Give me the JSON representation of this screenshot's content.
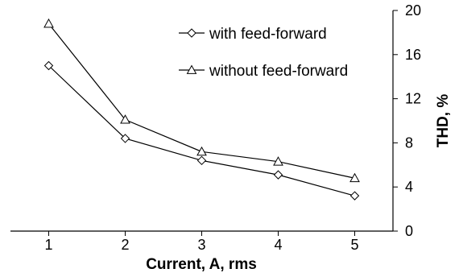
{
  "chart_data": {
    "type": "line",
    "title": "",
    "xlabel": "Current, A, rms",
    "ylabel": "THD, %",
    "x": [
      1,
      2,
      3,
      4,
      5
    ],
    "xticks": [
      "1",
      "2",
      "3",
      "4",
      "5"
    ],
    "xlim": [
      0.5,
      5.5
    ],
    "y_axis_side": "right",
    "ylim": [
      0,
      20
    ],
    "yticks": [
      "0",
      "4",
      "8",
      "12",
      "16",
      "20"
    ],
    "ytick_values": [
      0,
      4,
      8,
      12,
      16,
      20
    ],
    "grid": false,
    "legend_position": "top-right",
    "series": [
      {
        "name": "with feed-forward",
        "marker": "diamond",
        "color": "#000000",
        "values": [
          15.0,
          8.4,
          6.4,
          5.1,
          3.2
        ]
      },
      {
        "name": "without feed-forward",
        "marker": "triangle",
        "color": "#000000",
        "values": [
          18.8,
          10.1,
          7.2,
          6.3,
          4.8
        ]
      }
    ]
  }
}
